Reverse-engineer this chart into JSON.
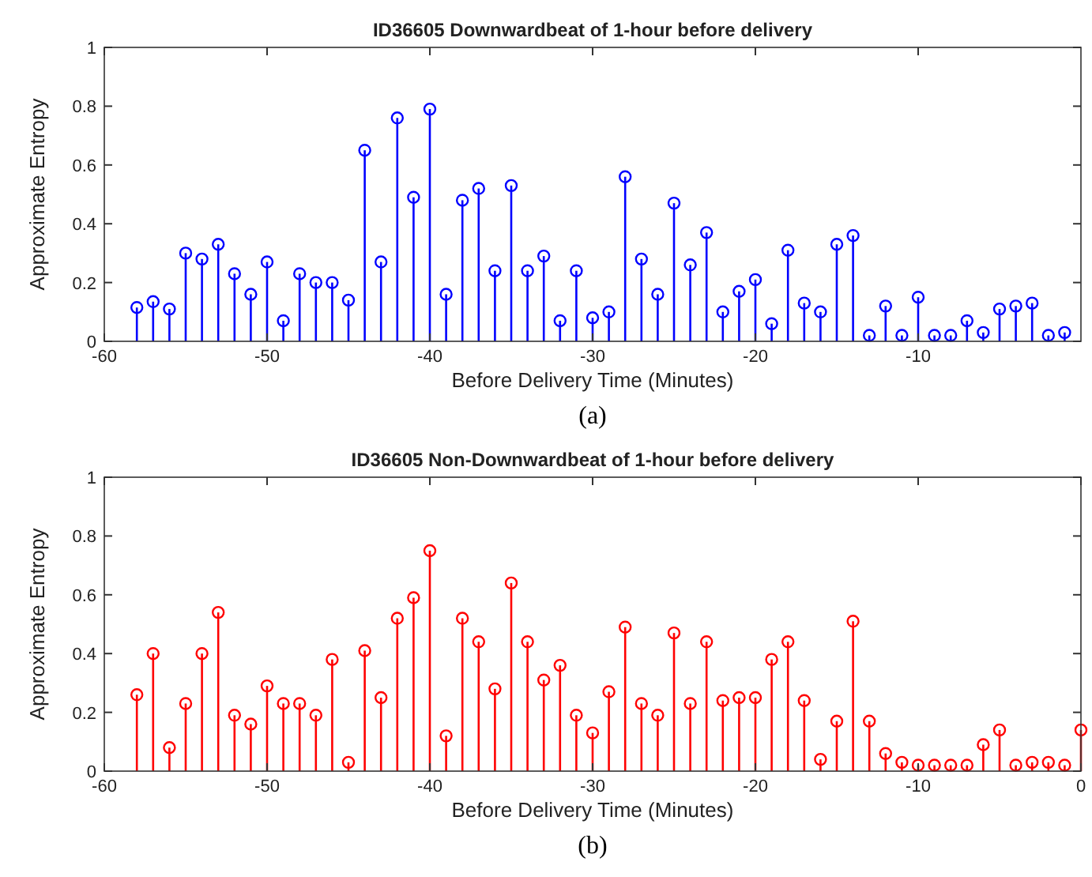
{
  "chart_data": [
    {
      "type": "lollipop",
      "title": "ID36605 Downwardbeat of 1-hour before delivery",
      "xlabel": "Before Delivery Time (Minutes)",
      "ylabel": "Approximate Entropy",
      "annotations": [
        "(a)"
      ],
      "xlim": [
        -60,
        0
      ],
      "xticks": [
        -60,
        -50,
        -40,
        -30,
        -20,
        -10
      ],
      "ylim": [
        0,
        1
      ],
      "yticks": [
        0,
        0.2,
        0.4,
        0.6,
        0.8,
        1
      ],
      "grid": false,
      "marker": "circle",
      "x": [
        -58,
        -57,
        -56,
        -55,
        -54,
        -53,
        -52,
        -51,
        -50,
        -49,
        -48,
        -47,
        -46,
        -45,
        -44,
        -43,
        -42,
        -41,
        -40,
        -39,
        -38,
        -37,
        -36,
        -35,
        -34,
        -33,
        -32,
        -31,
        -30,
        -29,
        -28,
        -27,
        -26,
        -25,
        -24,
        -23,
        -22,
        -21,
        -20,
        -19,
        -18,
        -17,
        -16,
        -15,
        -14,
        -13,
        -12,
        -11,
        -10,
        -9,
        -8,
        -7,
        -6,
        -5,
        -4,
        -3,
        -2,
        -1
      ],
      "series": [
        {
          "color": "#0000ff",
          "values": [
            0.115,
            0.135,
            0.11,
            0.3,
            0.28,
            0.33,
            0.23,
            0.16,
            0.27,
            0.07,
            0.23,
            0.2,
            0.2,
            0.14,
            0.65,
            0.27,
            0.76,
            0.49,
            0.79,
            0.16,
            0.48,
            0.52,
            0.24,
            0.53,
            0.24,
            0.29,
            0.07,
            0.24,
            0.08,
            0.1,
            0.56,
            0.28,
            0.16,
            0.47,
            0.26,
            0.37,
            0.1,
            0.17,
            0.21,
            0.06,
            0.31,
            0.13,
            0.1,
            0.33,
            0.36,
            0.02,
            0.12,
            0.02,
            0.15,
            0.02,
            0.02,
            0.07,
            0.03,
            0.11,
            0.12,
            0.13,
            0.02,
            0.03
          ]
        }
      ]
    },
    {
      "type": "lollipop",
      "title": "ID36605 Non-Downwardbeat of 1-hour before delivery",
      "xlabel": "Before Delivery Time (Minutes)",
      "ylabel": "Approximate Entropy",
      "annotations": [
        "(b)"
      ],
      "xlim": [
        -60,
        0
      ],
      "xticks": [
        -60,
        -50,
        -40,
        -30,
        -20,
        -10,
        0
      ],
      "ylim": [
        0,
        1
      ],
      "yticks": [
        0,
        0.2,
        0.4,
        0.6,
        0.8,
        1
      ],
      "grid": false,
      "marker": "circle",
      "x": [
        -58,
        -57,
        -56,
        -55,
        -54,
        -53,
        -52,
        -51,
        -50,
        -49,
        -48,
        -47,
        -46,
        -45,
        -44,
        -43,
        -42,
        -41,
        -40,
        -39,
        -38,
        -37,
        -36,
        -35,
        -34,
        -33,
        -32,
        -31,
        -30,
        -29,
        -28,
        -27,
        -26,
        -25,
        -24,
        -23,
        -22,
        -21,
        -20,
        -19,
        -18,
        -17,
        -16,
        -15,
        -14,
        -13,
        -12,
        -11,
        -10,
        -9,
        -8,
        -7,
        -6,
        -5,
        -4,
        -3,
        -2,
        -1,
        0
      ],
      "series": [
        {
          "color": "#ff0000",
          "values": [
            0.26,
            0.4,
            0.08,
            0.23,
            0.4,
            0.54,
            0.19,
            0.16,
            0.29,
            0.23,
            0.23,
            0.19,
            0.38,
            0.03,
            0.41,
            0.25,
            0.52,
            0.59,
            0.75,
            0.12,
            0.52,
            0.44,
            0.28,
            0.64,
            0.44,
            0.31,
            0.36,
            0.19,
            0.13,
            0.27,
            0.49,
            0.23,
            0.19,
            0.47,
            0.23,
            0.44,
            0.24,
            0.25,
            0.25,
            0.38,
            0.44,
            0.24,
            0.04,
            0.17,
            0.51,
            0.17,
            0.06,
            0.03,
            0.02,
            0.02,
            0.02,
            0.02,
            0.09,
            0.14,
            0.02,
            0.03,
            0.03,
            0.02,
            0.14
          ]
        }
      ]
    }
  ]
}
